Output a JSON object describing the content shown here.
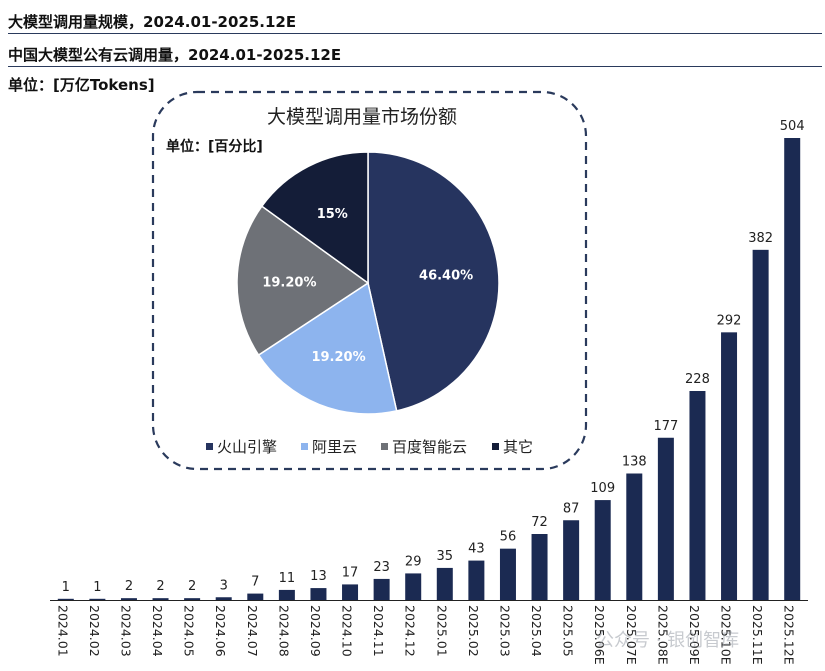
{
  "header": {
    "title": "大模型调用量规模，2024.01-2025.12E",
    "subtitle": "中国大模型公有云调用量，2024.01-2025.12E",
    "unit": "单位：[万亿Tokens]"
  },
  "watermark": "公众号 · 银创智库",
  "colors": {
    "bar": "#1b2a52",
    "volcano": "#26345f",
    "aliyun": "#8db4ee",
    "baidu": "#6e7177",
    "other": "#141d38",
    "frame": "#2a3a5c"
  },
  "chart_data": [
    {
      "type": "bar",
      "categories": [
        "2024.01",
        "2024.02",
        "2024.03",
        "2024.04",
        "2024.05",
        "2024.06",
        "2024.07",
        "2024.08",
        "2024.09",
        "2024.10",
        "2024.11",
        "2024.12",
        "2025.01",
        "2025.02",
        "2025.03",
        "2025.04",
        "2025.05",
        "2025.06E",
        "2025.07E",
        "2025.08E",
        "2025.09E",
        "2025.10E",
        "2025.11E",
        "2025.12E"
      ],
      "values": [
        1,
        1,
        2,
        2,
        2,
        3,
        7,
        11,
        13,
        17,
        23,
        29,
        35,
        43,
        56,
        72,
        87,
        109,
        138,
        177,
        228,
        292,
        382,
        504
      ],
      "ylim": [
        0,
        504
      ],
      "grid": false,
      "data_labels": true
    },
    {
      "type": "pie",
      "title": "大模型调用量市场份额",
      "unit": "单位：[百分比]",
      "labels": [
        "火山引擎",
        "阿里云",
        "百度智能云",
        "其它"
      ],
      "values": [
        46.4,
        19.2,
        19.2,
        15
      ],
      "value_labels": [
        "46.40%",
        "19.20%",
        "19.20%",
        "15%"
      ],
      "legend": "bottom"
    }
  ]
}
